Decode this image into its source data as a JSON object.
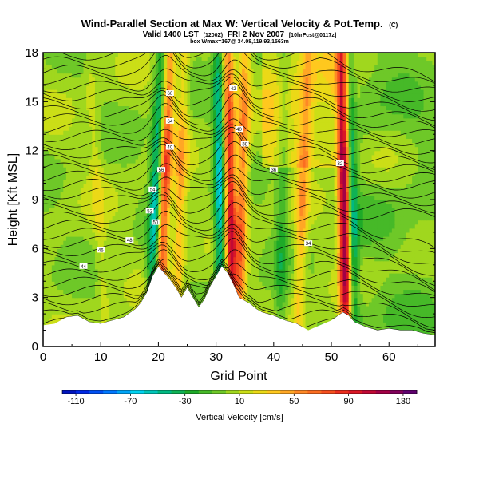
{
  "chart_data": {
    "type": "heatmap",
    "title": "Wind-Parallel Section at Max W: Vertical Velocity & Pot.Temp.",
    "title_mark": "(C)",
    "subtitle_main": "Valid 1400 LST",
    "subtitle_small_1": "(1200Z)",
    "subtitle_mid": "FRI 2 Nov 2007",
    "subtitle_small_2": "[10hrFcst@0117z]",
    "subtitle_line2": "box Wmax=167@ 34.08,119.93,1563m",
    "xlabel": "Grid Point",
    "ylabel": "Height [Kft MSL]",
    "xlim": [
      0,
      68
    ],
    "ylim": [
      0,
      18
    ],
    "xticks": [
      "0",
      "10",
      "20",
      "30",
      "40",
      "50",
      "60"
    ],
    "yticks": [
      "0",
      "3",
      "6",
      "9",
      "12",
      "15",
      "18"
    ],
    "colorbar": {
      "label": "Vertical Velocity [cm/s]",
      "tick_labels": [
        "-110",
        "-70",
        "-30",
        "10",
        "50",
        "90",
        "130"
      ],
      "range": [
        -120,
        140
      ],
      "step": 10
    },
    "updraft_bands": [
      {
        "bottom_x": 20,
        "top_x": 22,
        "peak": 80
      },
      {
        "bottom_x": 23,
        "top_x": 24.5,
        "peak": 40
      },
      {
        "bottom_x": 32.8,
        "top_x": 32,
        "peak": 100
      },
      {
        "bottom_x": 34,
        "top_x": 35,
        "peak": 60
      },
      {
        "bottom_x": 44,
        "top_x": 46,
        "peak": 40
      },
      {
        "bottom_x": 52.6,
        "top_x": 52,
        "peak": 130
      },
      {
        "bottom_x": 11,
        "top_x": 8,
        "peak": 15
      }
    ],
    "downdraft_bands": [
      {
        "bottom_x": 18.5,
        "top_x": 20.5,
        "peak": -60
      },
      {
        "bottom_x": 31,
        "top_x": 30.5,
        "peak": -70
      },
      {
        "bottom_x": 54,
        "top_x": 53,
        "peak": -60
      },
      {
        "bottom_x": 41,
        "top_x": 42,
        "peak": -25
      }
    ],
    "terrain_kft": [
      [
        0,
        1.3
      ],
      [
        2,
        1.4
      ],
      [
        4,
        1.8
      ],
      [
        6,
        1.9
      ],
      [
        8,
        1.5
      ],
      [
        10,
        1.4
      ],
      [
        12,
        1.6
      ],
      [
        14,
        1.8
      ],
      [
        16,
        2.3
      ],
      [
        17,
        2.7
      ],
      [
        18,
        3.3
      ],
      [
        19,
        4.3
      ],
      [
        20,
        4.9
      ],
      [
        21,
        4.5
      ],
      [
        22,
        4.1
      ],
      [
        23,
        3.6
      ],
      [
        24,
        3.0
      ],
      [
        25,
        3.6
      ],
      [
        26,
        3.0
      ],
      [
        27,
        2.4
      ],
      [
        28,
        2.9
      ],
      [
        29,
        3.7
      ],
      [
        30,
        4.3
      ],
      [
        31,
        4.9
      ],
      [
        32,
        4.5
      ],
      [
        33,
        3.8
      ],
      [
        34,
        3.0
      ],
      [
        35,
        2.8
      ],
      [
        36,
        2.6
      ],
      [
        37,
        2.3
      ],
      [
        38,
        2.1
      ],
      [
        40,
        1.9
      ],
      [
        42,
        1.6
      ],
      [
        44,
        1.4
      ],
      [
        46,
        1.0
      ],
      [
        48,
        1.3
      ],
      [
        50,
        1.6
      ],
      [
        52,
        2.1
      ],
      [
        53,
        1.9
      ],
      [
        54,
        1.5
      ],
      [
        56,
        1.2
      ],
      [
        58,
        1.0
      ],
      [
        60,
        1.1
      ],
      [
        62,
        1.0
      ],
      [
        64,
        1.0
      ],
      [
        66,
        0.8
      ],
      [
        68,
        0.7
      ]
    ],
    "theta_contour_labels": [
      "60",
      "64",
      "40",
      "56",
      "54",
      "52",
      "50",
      "48",
      "46",
      "44",
      "42",
      "40",
      "38",
      "36",
      "34",
      "32"
    ]
  }
}
